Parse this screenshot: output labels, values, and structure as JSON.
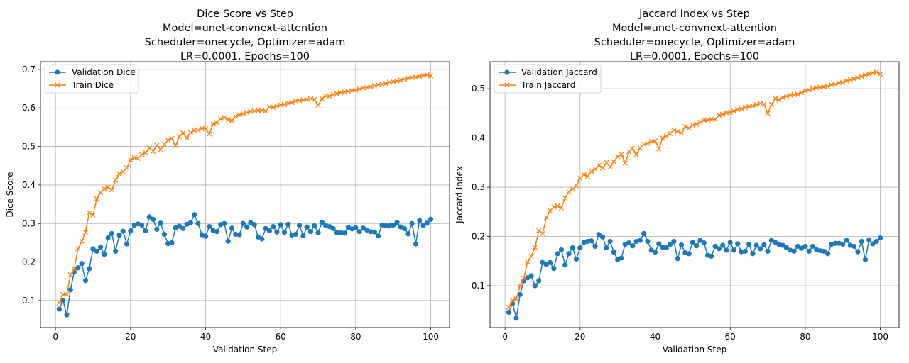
{
  "chart_data": [
    {
      "type": "line",
      "title": "Dice Score vs Step\nModel=unet-convnext-attention\nScheduler=onecycle, Optimizer=adam\nLR=0.0001, Epochs=100",
      "xlabel": "Validation Step",
      "ylabel": "Dice Score",
      "xlim": [
        -4,
        105
      ],
      "ylim": [
        0.03,
        0.72
      ],
      "xticks": [
        0,
        20,
        40,
        60,
        80,
        100
      ],
      "yticks": [
        0.1,
        0.2,
        0.3,
        0.4,
        0.5,
        0.6,
        0.7
      ],
      "grid": true,
      "legend": "upper-left",
      "x_start": 1,
      "series": [
        {
          "name": "Validation Dice",
          "color": "#1f77b4",
          "marker": "circle",
          "values": [
            0.078,
            0.1,
            0.063,
            0.128,
            0.175,
            0.185,
            0.196,
            0.152,
            0.183,
            0.234,
            0.228,
            0.239,
            0.22,
            0.263,
            0.274,
            0.228,
            0.27,
            0.28,
            0.247,
            0.281,
            0.296,
            0.299,
            0.296,
            0.281,
            0.317,
            0.311,
            0.285,
            0.301,
            0.272,
            0.248,
            0.25,
            0.289,
            0.293,
            0.287,
            0.298,
            0.302,
            0.323,
            0.3,
            0.271,
            0.267,
            0.292,
            0.282,
            0.279,
            0.297,
            0.3,
            0.254,
            0.288,
            0.272,
            0.271,
            0.3,
            0.291,
            0.302,
            0.297,
            0.265,
            0.26,
            0.287,
            0.281,
            0.292,
            0.278,
            0.297,
            0.277,
            0.298,
            0.27,
            0.272,
            0.295,
            0.268,
            0.291,
            0.279,
            0.294,
            0.276,
            0.303,
            0.295,
            0.292,
            0.287,
            0.276,
            0.277,
            0.275,
            0.29,
            0.286,
            0.289,
            0.279,
            0.288,
            0.283,
            0.279,
            0.278,
            0.268,
            0.296,
            0.294,
            0.294,
            0.296,
            0.303,
            0.291,
            0.287,
            0.273,
            0.3,
            0.247,
            0.308,
            0.295,
            0.301,
            0.311
          ]
        },
        {
          "name": "Train Dice",
          "color": "#ff7f0e",
          "marker": "x",
          "values": [
            0.094,
            0.116,
            0.116,
            0.167,
            0.182,
            0.234,
            0.254,
            0.277,
            0.328,
            0.322,
            0.364,
            0.38,
            0.39,
            0.394,
            0.387,
            0.413,
            0.429,
            0.434,
            0.445,
            0.465,
            0.471,
            0.469,
            0.479,
            0.484,
            0.496,
            0.487,
            0.503,
            0.492,
            0.505,
            0.516,
            0.521,
            0.502,
            0.526,
            0.535,
            0.522,
            0.536,
            0.542,
            0.542,
            0.547,
            0.546,
            0.532,
            0.558,
            0.562,
            0.572,
            0.575,
            0.57,
            0.567,
            0.578,
            0.582,
            0.585,
            0.588,
            0.591,
            0.592,
            0.593,
            0.594,
            0.592,
            0.603,
            0.601,
            0.605,
            0.608,
            0.609,
            0.612,
            0.614,
            0.618,
            0.619,
            0.621,
            0.622,
            0.624,
            0.622,
            0.607,
            0.624,
            0.631,
            0.63,
            0.635,
            0.637,
            0.64,
            0.641,
            0.643,
            0.645,
            0.646,
            0.649,
            0.652,
            0.653,
            0.655,
            0.657,
            0.66,
            0.662,
            0.663,
            0.667,
            0.668,
            0.67,
            0.672,
            0.675,
            0.677,
            0.679,
            0.68,
            0.682,
            0.684,
            0.686,
            0.683
          ]
        }
      ]
    },
    {
      "type": "line",
      "title": "Jaccard Index vs Step\nModel=unet-convnext-attention\nScheduler=onecycle, Optimizer=adam\nLR=0.0001, Epochs=100",
      "xlabel": "Validation Step",
      "ylabel": "Jaccard Index",
      "xlim": [
        -4,
        105
      ],
      "ylim": [
        0.015,
        0.555
      ],
      "xticks": [
        0,
        20,
        40,
        60,
        80,
        100
      ],
      "yticks": [
        0.1,
        0.2,
        0.3,
        0.4,
        0.5
      ],
      "grid": true,
      "legend": "upper-left",
      "x_start": 1,
      "series": [
        {
          "name": "Validation Jaccard",
          "color": "#1f77b4",
          "marker": "circle",
          "values": [
            0.046,
            0.064,
            0.034,
            0.082,
            0.11,
            0.116,
            0.12,
            0.1,
            0.11,
            0.147,
            0.143,
            0.147,
            0.135,
            0.165,
            0.173,
            0.142,
            0.165,
            0.177,
            0.154,
            0.177,
            0.188,
            0.19,
            0.191,
            0.18,
            0.204,
            0.199,
            0.177,
            0.19,
            0.168,
            0.153,
            0.156,
            0.184,
            0.187,
            0.181,
            0.19,
            0.192,
            0.206,
            0.19,
            0.172,
            0.168,
            0.185,
            0.178,
            0.177,
            0.184,
            0.19,
            0.155,
            0.183,
            0.167,
            0.165,
            0.188,
            0.181,
            0.192,
            0.187,
            0.162,
            0.16,
            0.18,
            0.175,
            0.182,
            0.172,
            0.188,
            0.172,
            0.185,
            0.169,
            0.17,
            0.184,
            0.165,
            0.182,
            0.175,
            0.183,
            0.17,
            0.192,
            0.188,
            0.184,
            0.182,
            0.177,
            0.172,
            0.17,
            0.18,
            0.176,
            0.18,
            0.17,
            0.18,
            0.173,
            0.171,
            0.17,
            0.165,
            0.184,
            0.186,
            0.186,
            0.184,
            0.192,
            0.182,
            0.18,
            0.169,
            0.19,
            0.153,
            0.193,
            0.185,
            0.19,
            0.197
          ]
        },
        {
          "name": "Train Jaccard",
          "color": "#ff7f0e",
          "marker": "x",
          "values": [
            0.056,
            0.07,
            0.073,
            0.1,
            0.115,
            0.148,
            0.16,
            0.178,
            0.212,
            0.206,
            0.238,
            0.252,
            0.26,
            0.262,
            0.258,
            0.278,
            0.291,
            0.296,
            0.303,
            0.318,
            0.326,
            0.322,
            0.332,
            0.337,
            0.344,
            0.339,
            0.35,
            0.341,
            0.352,
            0.362,
            0.367,
            0.349,
            0.372,
            0.379,
            0.366,
            0.38,
            0.387,
            0.389,
            0.393,
            0.394,
            0.378,
            0.4,
            0.404,
            0.409,
            0.416,
            0.413,
            0.41,
            0.423,
            0.42,
            0.426,
            0.428,
            0.432,
            0.436,
            0.437,
            0.438,
            0.438,
            0.446,
            0.448,
            0.451,
            0.452,
            0.455,
            0.458,
            0.459,
            0.462,
            0.464,
            0.465,
            0.468,
            0.47,
            0.469,
            0.45,
            0.468,
            0.48,
            0.478,
            0.482,
            0.485,
            0.487,
            0.488,
            0.489,
            0.492,
            0.496,
            0.498,
            0.5,
            0.502,
            0.503,
            0.504,
            0.505,
            0.508,
            0.509,
            0.512,
            0.513,
            0.516,
            0.518,
            0.52,
            0.523,
            0.525,
            0.528,
            0.53,
            0.532,
            0.534,
            0.53
          ]
        }
      ]
    }
  ]
}
